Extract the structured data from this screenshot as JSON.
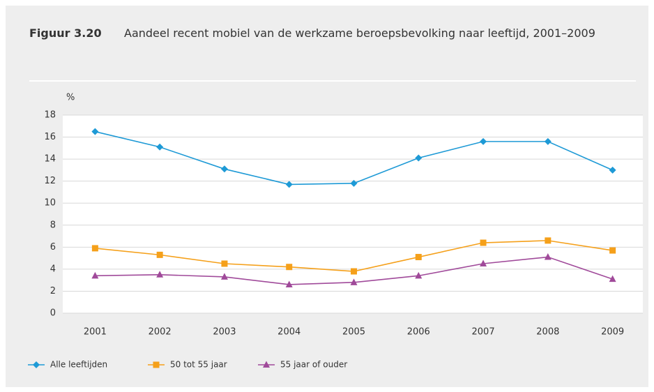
{
  "chart_data": {
    "type": "line",
    "figure_label": "Figuur 3.20",
    "title": "Aandeel recent mobiel van de werkzame beroepsbevolking naar leeftijd, 2001–2009",
    "y_label": "%",
    "categories": [
      "2001",
      "2002",
      "2003",
      "2004",
      "2005",
      "2006",
      "2007",
      "2008",
      "2009"
    ],
    "series": [
      {
        "name": "Alle leeftijden",
        "color": "#1e9ad6",
        "marker": "diamond",
        "values": [
          16.5,
          15.1,
          13.1,
          11.7,
          11.8,
          14.1,
          15.6,
          15.6,
          13.0
        ]
      },
      {
        "name": "50 tot 55 jaar",
        "color": "#f5a01a",
        "marker": "square",
        "values": [
          5.9,
          5.3,
          4.5,
          4.2,
          3.8,
          5.1,
          6.4,
          6.6,
          5.7
        ]
      },
      {
        "name": "55 jaar of ouder",
        "color": "#a04a9a",
        "marker": "triangle",
        "values": [
          3.4,
          3.5,
          3.3,
          2.6,
          2.8,
          3.4,
          4.5,
          5.1,
          3.1
        ]
      }
    ],
    "ylim": [
      0,
      18
    ],
    "yticks": [
      0,
      2,
      4,
      6,
      8,
      10,
      12,
      14,
      16,
      18
    ],
    "grid": true,
    "legend": "bottom"
  }
}
